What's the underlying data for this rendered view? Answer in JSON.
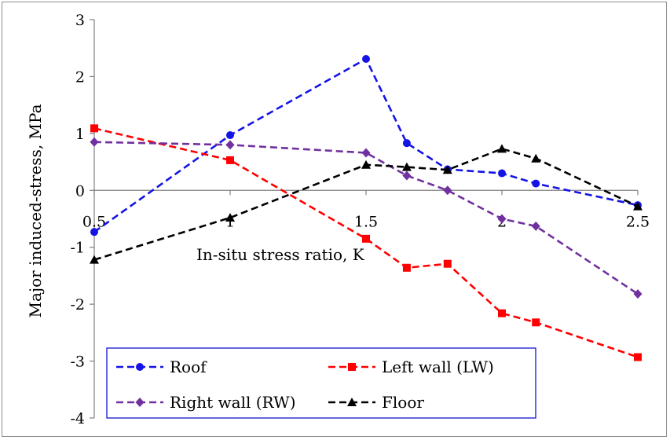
{
  "chart_data": {
    "type": "line",
    "title": "",
    "xlabel": "In-situ stress ratio, K",
    "ylabel": "Major induced-stress, MPa",
    "xlim": [
      0.5,
      2.5
    ],
    "ylim": [
      -4,
      3
    ],
    "x_ticks": [
      "0.5",
      "1",
      "1.5",
      "2",
      "2.5"
    ],
    "y_ticks": [
      "3",
      "2",
      "1",
      "0",
      "-1",
      "-2",
      "-3",
      "-4"
    ],
    "grid": false,
    "legend_position": "bottom-center",
    "series": [
      {
        "name": "Roof",
        "color": "#1414e6",
        "marker": "circle",
        "line": "dashed",
        "x": [
          0.5,
          1.0,
          1.5,
          1.65,
          1.8,
          2.0,
          2.125,
          2.5
        ],
        "values": [
          -0.73,
          0.97,
          2.31,
          0.83,
          0.37,
          0.3,
          0.12,
          -0.26
        ]
      },
      {
        "name": "Left wall (LW)",
        "color": "#ff0000",
        "marker": "square",
        "line": "dashed",
        "x": [
          0.5,
          1.0,
          1.5,
          1.65,
          1.8,
          2.0,
          2.125,
          2.5
        ],
        "values": [
          1.09,
          0.53,
          -0.85,
          -1.36,
          -1.29,
          -2.16,
          -2.32,
          -2.93
        ]
      },
      {
        "name": "Right wall (RW)",
        "color": "#7030a0",
        "marker": "diamond",
        "line": "dashed",
        "x": [
          0.5,
          1.0,
          1.5,
          1.65,
          1.8,
          2.0,
          2.125,
          2.5
        ],
        "values": [
          0.85,
          0.8,
          0.66,
          0.26,
          0.0,
          -0.5,
          -0.63,
          -1.82
        ]
      },
      {
        "name": "Floor",
        "color": "#000000",
        "marker": "triangle",
        "line": "dashed",
        "x": [
          0.5,
          1.0,
          1.5,
          1.65,
          1.8,
          2.0,
          2.125,
          2.5
        ],
        "values": [
          -1.22,
          -0.48,
          0.45,
          0.41,
          0.36,
          0.73,
          0.56,
          -0.28
        ]
      }
    ]
  }
}
